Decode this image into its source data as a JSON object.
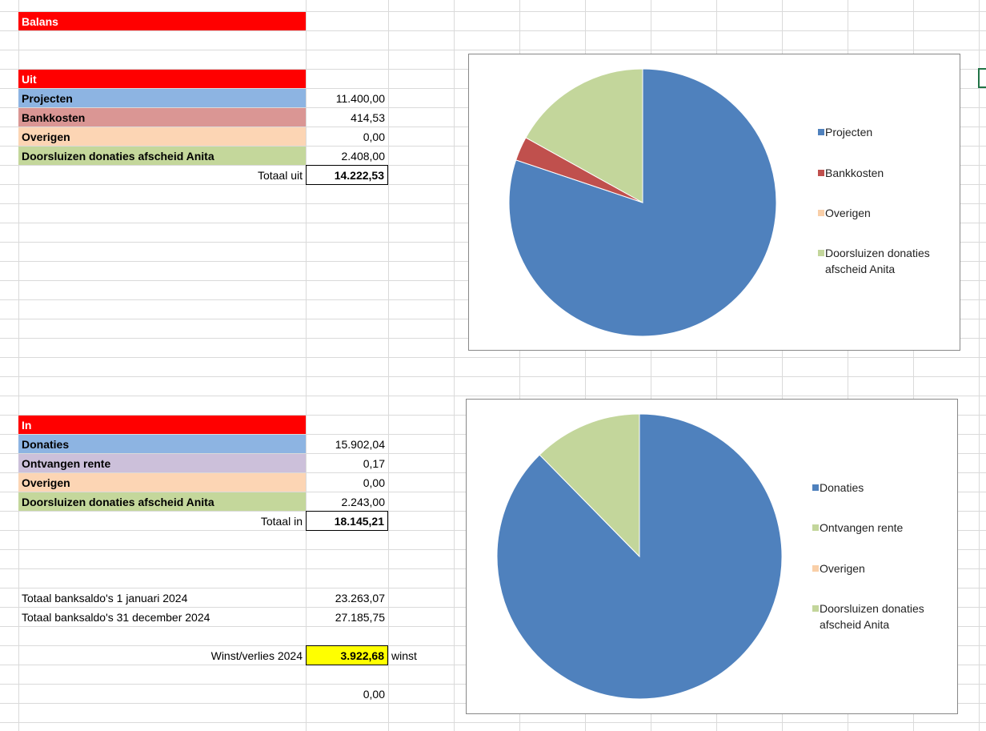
{
  "sheet": {
    "title": "Balans",
    "uit": {
      "header": "Uit",
      "rows": [
        {
          "label": "Projecten",
          "value": "11.400,00",
          "color": "#8db4e2"
        },
        {
          "label": "Bankkosten",
          "value": "414,53",
          "color": "#da9694"
        },
        {
          "label": "Overigen",
          "value": "0,00",
          "color": "#fcd5b4"
        },
        {
          "label": "Doorsluizen donaties afscheid Anita",
          "value": "2.408,00",
          "color": "#c4d79b"
        }
      ],
      "total_label": "Totaal uit",
      "total_value": "14.222,53"
    },
    "in": {
      "header": "In",
      "rows": [
        {
          "label": "Donaties",
          "value": "15.902,04",
          "color": "#8db4e2"
        },
        {
          "label": "Ontvangen rente",
          "value": "0,17",
          "color": "#ccc0da"
        },
        {
          "label": "Overigen",
          "value": "0,00",
          "color": "#fcd5b4"
        },
        {
          "label": "Doorsluizen donaties afscheid Anita",
          "value": "2.243,00",
          "color": "#c4d79b"
        }
      ],
      "total_label": "Totaal in",
      "total_value": "18.145,21"
    },
    "saldo_start_label": "Totaal banksaldo's 1 januari 2024",
    "saldo_start_value": "23.263,07",
    "saldo_end_label": "Totaal banksaldo's 31 december 2024",
    "saldo_end_value": "27.185,75",
    "winst_label": "Winst/verlies 2024",
    "winst_value": "3.922,68",
    "winst_suffix": "winst",
    "check_value": "0,00"
  },
  "chart_data": [
    {
      "type": "pie",
      "categories": [
        "Projecten",
        "Bankkosten",
        "Overigen",
        "Doorsluizen donaties afscheid Anita"
      ],
      "values": [
        11400.0,
        414.53,
        0.0,
        2408.0
      ],
      "colors": [
        "#4f81bd",
        "#c0504d",
        "#f9cfa8",
        "#c3d69b"
      ],
      "legend": "right"
    },
    {
      "type": "pie",
      "categories": [
        "Donaties",
        "Ontvangen rente",
        "Overigen",
        "Doorsluizen donaties afscheid Anita"
      ],
      "values": [
        15902.04,
        0.17,
        0.0,
        2243.0
      ],
      "colors": [
        "#4f81bd",
        "#c3d69b",
        "#f9cfa8",
        "#c3d69b"
      ],
      "legend": "right"
    }
  ]
}
